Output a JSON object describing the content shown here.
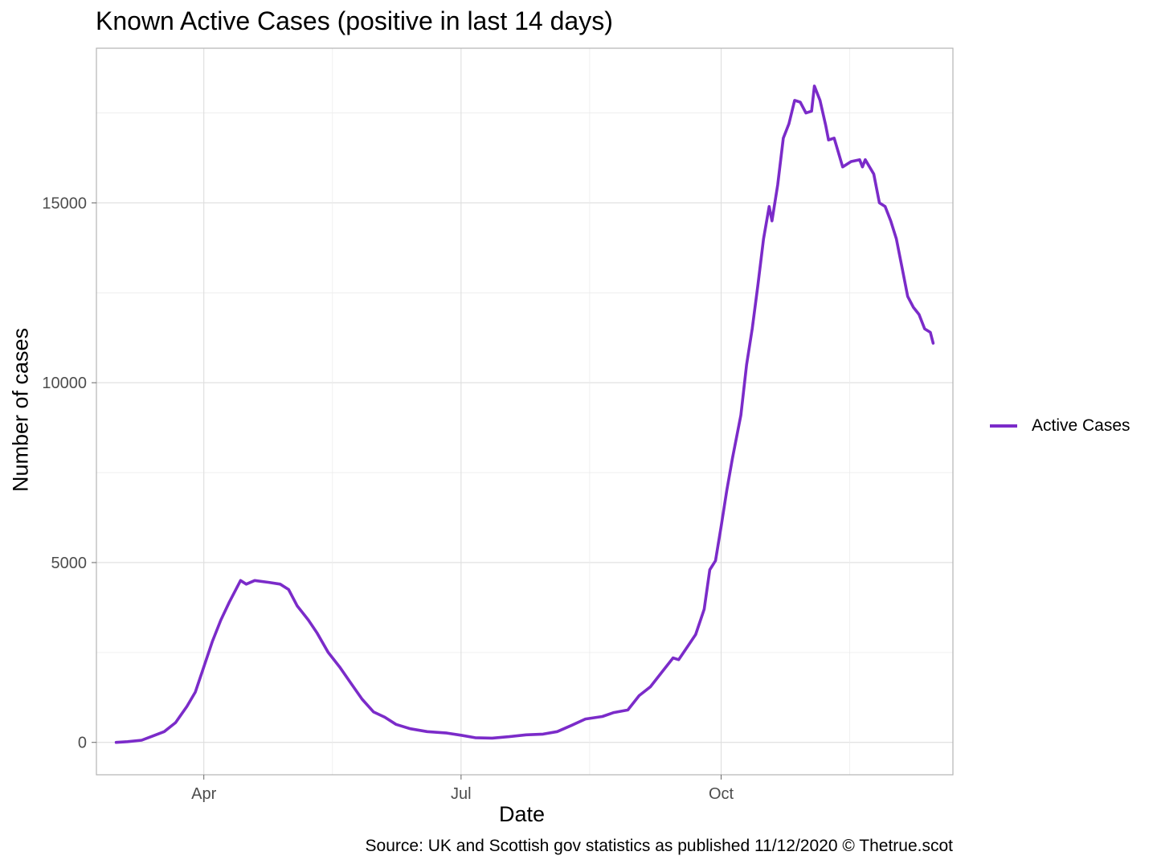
{
  "chart_data": {
    "type": "line",
    "title": "Known Active Cases (positive in last 14 days)",
    "xlabel": "Date",
    "ylabel": "Number of cases",
    "caption": "Source: UK and Scottish gov statistics as published 11/12/2020  © Thetrue.scot",
    "x_ticks": [
      {
        "label": "Apr",
        "date": "2020-04-01"
      },
      {
        "label": "Jul",
        "date": "2020-07-01"
      },
      {
        "label": "Oct",
        "date": "2020-10-01"
      }
    ],
    "y_ticks": [
      0,
      5000,
      10000,
      15000
    ],
    "xlim": [
      "2020-02-23",
      "2020-12-22"
    ],
    "ylim": [
      -900,
      19300
    ],
    "grid": true,
    "legend_position": "right",
    "series": [
      {
        "name": "Active Cases",
        "color": "#7b2bc9",
        "points": [
          [
            "2020-03-01",
            0
          ],
          [
            "2020-03-05",
            20
          ],
          [
            "2020-03-10",
            60
          ],
          [
            "2020-03-14",
            180
          ],
          [
            "2020-03-18",
            300
          ],
          [
            "2020-03-22",
            550
          ],
          [
            "2020-03-26",
            1000
          ],
          [
            "2020-03-29",
            1400
          ],
          [
            "2020-04-01",
            2100
          ],
          [
            "2020-04-04",
            2800
          ],
          [
            "2020-04-07",
            3400
          ],
          [
            "2020-04-10",
            3900
          ],
          [
            "2020-04-14",
            4500
          ],
          [
            "2020-04-16",
            4400
          ],
          [
            "2020-04-19",
            4500
          ],
          [
            "2020-04-24",
            4450
          ],
          [
            "2020-04-28",
            4400
          ],
          [
            "2020-05-01",
            4250
          ],
          [
            "2020-05-04",
            3800
          ],
          [
            "2020-05-08",
            3400
          ],
          [
            "2020-05-11",
            3050
          ],
          [
            "2020-05-15",
            2500
          ],
          [
            "2020-05-19",
            2100
          ],
          [
            "2020-05-23",
            1650
          ],
          [
            "2020-05-27",
            1200
          ],
          [
            "2020-05-31",
            850
          ],
          [
            "2020-06-04",
            700
          ],
          [
            "2020-06-08",
            500
          ],
          [
            "2020-06-13",
            380
          ],
          [
            "2020-06-19",
            300
          ],
          [
            "2020-06-26",
            260
          ],
          [
            "2020-07-01",
            200
          ],
          [
            "2020-07-06",
            130
          ],
          [
            "2020-07-12",
            120
          ],
          [
            "2020-07-18",
            160
          ],
          [
            "2020-07-24",
            210
          ],
          [
            "2020-07-30",
            230
          ],
          [
            "2020-08-04",
            300
          ],
          [
            "2020-08-09",
            470
          ],
          [
            "2020-08-14",
            650
          ],
          [
            "2020-08-20",
            720
          ],
          [
            "2020-08-24",
            830
          ],
          [
            "2020-08-29",
            900
          ],
          [
            "2020-09-02",
            1300
          ],
          [
            "2020-09-06",
            1550
          ],
          [
            "2020-09-10",
            1950
          ],
          [
            "2020-09-14",
            2350
          ],
          [
            "2020-09-16",
            2300
          ],
          [
            "2020-09-19",
            2650
          ],
          [
            "2020-09-22",
            3000
          ],
          [
            "2020-09-25",
            3700
          ],
          [
            "2020-09-27",
            4800
          ],
          [
            "2020-09-29",
            5050
          ],
          [
            "2020-10-01",
            6000
          ],
          [
            "2020-10-03",
            7000
          ],
          [
            "2020-10-05",
            7900
          ],
          [
            "2020-10-08",
            9100
          ],
          [
            "2020-10-10",
            10500
          ],
          [
            "2020-10-12",
            11500
          ],
          [
            "2020-10-14",
            12700
          ],
          [
            "2020-10-16",
            14000
          ],
          [
            "2020-10-18",
            14900
          ],
          [
            "2020-10-19",
            14500
          ],
          [
            "2020-10-21",
            15500
          ],
          [
            "2020-10-23",
            16800
          ],
          [
            "2020-10-25",
            17200
          ],
          [
            "2020-10-27",
            17850
          ],
          [
            "2020-10-29",
            17800
          ],
          [
            "2020-10-31",
            17500
          ],
          [
            "2020-11-02",
            17550
          ],
          [
            "2020-11-03",
            18250
          ],
          [
            "2020-11-05",
            17850
          ],
          [
            "2020-11-07",
            17150
          ],
          [
            "2020-11-08",
            16750
          ],
          [
            "2020-11-10",
            16800
          ],
          [
            "2020-11-13",
            16000
          ],
          [
            "2020-11-16",
            16150
          ],
          [
            "2020-11-19",
            16200
          ],
          [
            "2020-11-20",
            16000
          ],
          [
            "2020-11-21",
            16200
          ],
          [
            "2020-11-24",
            15800
          ],
          [
            "2020-11-26",
            15000
          ],
          [
            "2020-11-28",
            14900
          ],
          [
            "2020-11-30",
            14500
          ],
          [
            "2020-12-02",
            14000
          ],
          [
            "2020-12-04",
            13200
          ],
          [
            "2020-12-06",
            12400
          ],
          [
            "2020-12-08",
            12100
          ],
          [
            "2020-12-10",
            11900
          ],
          [
            "2020-12-12",
            11500
          ],
          [
            "2020-12-14",
            11400
          ],
          [
            "2020-12-15",
            11100
          ]
        ]
      }
    ]
  }
}
